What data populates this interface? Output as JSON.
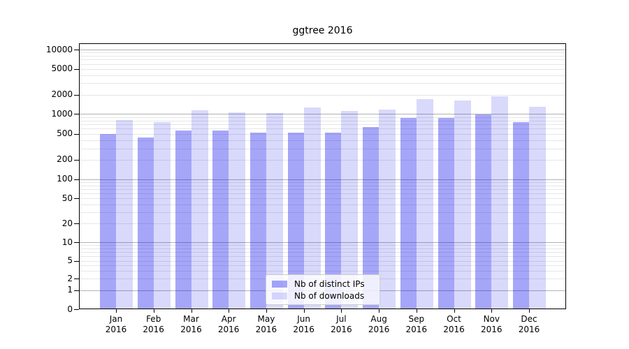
{
  "chart_data": {
    "type": "bar",
    "title": "ggtree 2016",
    "categories": [
      "Jan",
      "Feb",
      "Mar",
      "Apr",
      "May",
      "Jun",
      "Jul",
      "Aug",
      "Sep",
      "Oct",
      "Nov",
      "Dec"
    ],
    "year_label": "2016",
    "series": [
      {
        "name": "Nb of distinct IPs",
        "color": "rgba(0,0,238,0.35)",
        "values": [
          500,
          440,
          570,
          560,
          520,
          525,
          520,
          640,
          870,
          880,
          975,
          760
        ]
      },
      {
        "name": "Nb of downloads",
        "color": "rgba(0,0,238,0.15)",
        "values": [
          810,
          760,
          1150,
          1060,
          1030,
          1260,
          1110,
          1160,
          1700,
          1620,
          1880,
          1290
        ]
      }
    ],
    "y_axis": {
      "scale": "symlog",
      "ticks": [
        10000,
        5000,
        2000,
        1000,
        500,
        200,
        100,
        50,
        20,
        10,
        5,
        2,
        1,
        0
      ],
      "ylim": [
        0,
        10000
      ]
    },
    "grid": true,
    "legend_position": "lower center"
  },
  "colors": {
    "major_grid": "#b2b2b2",
    "minor_grid": "#e6e6e6",
    "spine": "#000000",
    "background": "#ffffff"
  }
}
